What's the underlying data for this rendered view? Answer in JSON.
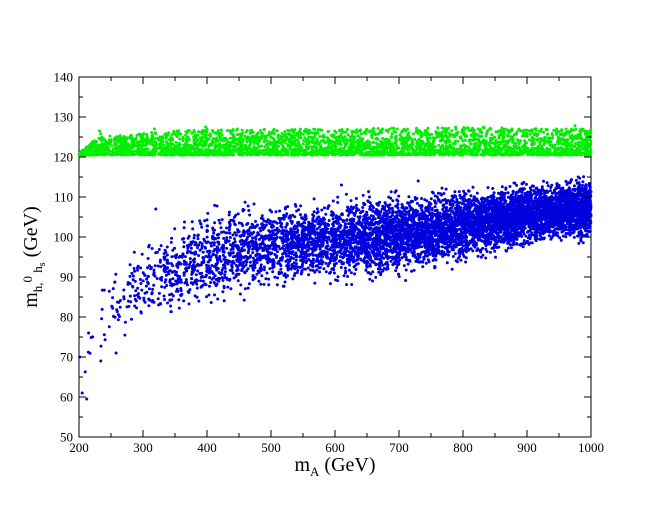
{
  "chart_data": {
    "type": "scatter",
    "xlabel": {
      "main": "m",
      "sub": "A",
      "unit": " (GeV)"
    },
    "ylabel": {
      "main": "m",
      "sub1": "h,",
      "sup": "0",
      "sub2": " h",
      "sub3": "s",
      "unit": " (GeV)"
    },
    "xlim": [
      200,
      1000
    ],
    "ylim": [
      50,
      140
    ],
    "x_ticks": [
      200,
      300,
      400,
      500,
      600,
      700,
      800,
      900,
      1000
    ],
    "y_ticks": [
      50,
      60,
      70,
      80,
      90,
      100,
      110,
      120,
      130,
      140
    ],
    "grid": false,
    "legend": "none",
    "series": [
      {
        "color": "#00ee00",
        "point_count": 3500,
        "x_range": [
          200,
          1000
        ],
        "floor": 120.5,
        "band_upper_profile": [
          [
            200,
            121
          ],
          [
            215,
            123
          ],
          [
            230,
            125
          ],
          [
            300,
            126
          ],
          [
            400,
            127
          ],
          [
            600,
            127
          ],
          [
            800,
            127.5
          ],
          [
            1000,
            127
          ]
        ],
        "sample_points": [
          [
            232,
            126.5
          ],
          [
            234,
            125.8
          ],
          [
            318,
            127
          ],
          [
            398,
            127.5
          ],
          [
            552,
            126.5
          ],
          [
            745,
            127.2
          ],
          [
            975,
            127.8
          ]
        ]
      },
      {
        "color": "#0000dd",
        "point_count": 7000,
        "x_range": [
          200,
          1000
        ],
        "envelope_lower": [
          [
            200,
            58
          ],
          [
            220,
            67
          ],
          [
            260,
            72
          ],
          [
            300,
            77
          ],
          [
            400,
            81
          ],
          [
            500,
            85
          ],
          [
            600,
            87
          ],
          [
            700,
            88
          ],
          [
            800,
            92
          ],
          [
            900,
            96
          ],
          [
            1000,
            98
          ]
        ],
        "envelope_upper": [
          [
            200,
            69
          ],
          [
            220,
            86
          ],
          [
            250,
            96
          ],
          [
            300,
            100
          ],
          [
            350,
            105
          ],
          [
            400,
            109
          ],
          [
            500,
            111
          ],
          [
            600,
            112
          ],
          [
            700,
            113
          ],
          [
            800,
            114
          ],
          [
            900,
            115
          ],
          [
            1000,
            116
          ]
        ],
        "sample_points": [
          [
            205,
            61
          ],
          [
            212,
            59.5
          ],
          [
            201,
            70
          ],
          [
            215,
            76
          ],
          [
            234,
            69
          ],
          [
            258,
            71
          ],
          [
            320,
            107
          ],
          [
            610,
            113
          ],
          [
            730,
            114
          ],
          [
            980,
            115
          ]
        ]
      }
    ]
  }
}
